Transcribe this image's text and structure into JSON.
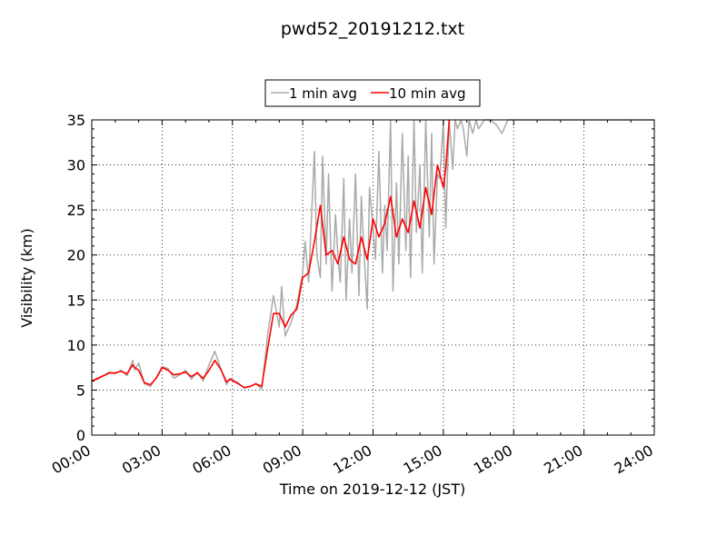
{
  "chart_data": {
    "type": "line",
    "title": "pwd52_20191212.txt",
    "xlabel": "Time on 2019-12-12 (JST)",
    "ylabel": "Visibility (km)",
    "xlim": [
      0,
      24
    ],
    "ylim": [
      0,
      35
    ],
    "x_tick_labels": [
      "00:00",
      "03:00",
      "06:00",
      "09:00",
      "12:00",
      "15:00",
      "18:00",
      "21:00",
      "24:00"
    ],
    "y_tick_labels": [
      "0",
      "5",
      "10",
      "15",
      "20",
      "25",
      "30",
      "35"
    ],
    "grid": true,
    "legend_position": "top-center",
    "series": [
      {
        "name": "1 min avg",
        "color": "#aaaaaa",
        "x": [
          0.0,
          0.25,
          0.5,
          0.75,
          1.0,
          1.25,
          1.5,
          1.75,
          1.83,
          2.0,
          2.25,
          2.5,
          2.75,
          3.0,
          3.25,
          3.5,
          3.75,
          4.0,
          4.25,
          4.5,
          4.75,
          5.0,
          5.25,
          5.5,
          5.75,
          5.9,
          6.25,
          6.5,
          6.75,
          7.0,
          7.25,
          7.5,
          7.75,
          8.0,
          8.1,
          8.25,
          8.5,
          8.75,
          9.0,
          9.1,
          9.25,
          9.5,
          9.6,
          9.75,
          9.85,
          10.0,
          10.1,
          10.25,
          10.4,
          10.5,
          10.6,
          10.75,
          10.85,
          11.0,
          11.1,
          11.25,
          11.4,
          11.5,
          11.6,
          11.75,
          11.85,
          12.0,
          12.1,
          12.25,
          12.4,
          12.5,
          12.6,
          12.75,
          12.85,
          13.0,
          13.1,
          13.25,
          13.4,
          13.5,
          13.6,
          13.75,
          13.85,
          14.0,
          14.1,
          14.25,
          14.4,
          14.5,
          14.6,
          14.75,
          14.85,
          15.0,
          15.1,
          15.25,
          15.4,
          15.5,
          15.6,
          15.75,
          15.85,
          16.0,
          16.1,
          16.25,
          16.4,
          16.5,
          16.75,
          17.0,
          17.25,
          17.5,
          17.75,
          18.0,
          18.5,
          19.0,
          19.5,
          20.0,
          20.5,
          21.0,
          21.5,
          22.0,
          22.5,
          23.0,
          23.5,
          24.0
        ],
        "values": [
          6.0,
          6.2,
          6.6,
          7.0,
          6.8,
          7.2,
          6.6,
          8.3,
          7.2,
          8.0,
          5.7,
          5.4,
          6.4,
          7.6,
          7.4,
          6.3,
          6.7,
          7.2,
          6.2,
          7.0,
          6.0,
          7.8,
          9.3,
          7.4,
          5.6,
          6.3,
          5.8,
          5.2,
          5.4,
          5.7,
          5.1,
          11.0,
          15.5,
          12.0,
          16.5,
          11.0,
          12.5,
          14.5,
          18.0,
          21.5,
          17.0,
          31.5,
          20.0,
          17.5,
          31.0,
          19.0,
          29.0,
          16.0,
          24.5,
          20.0,
          17.0,
          28.5,
          15.0,
          24.0,
          18.0,
          29.0,
          15.5,
          26.5,
          21.0,
          14.0,
          27.5,
          23.0,
          19.5,
          31.5,
          18.0,
          25.5,
          20.5,
          35.0,
          16.0,
          28.0,
          19.0,
          33.5,
          20.5,
          31.0,
          17.5,
          35.0,
          22.5,
          30.0,
          18.0,
          35.0,
          22.0,
          33.5,
          19.0,
          29.0,
          28.5,
          35.0,
          23.0,
          35.0,
          29.5,
          35.0,
          34.0,
          35.0,
          34.0,
          31.0,
          35.0,
          33.5,
          35.0,
          34.0,
          35.0,
          35.0,
          34.5,
          33.5,
          35.0,
          35.0,
          35.0,
          35.0,
          35.0,
          35.0,
          35.0,
          35.0,
          35.0,
          35.0,
          35.0,
          35.0,
          35.0,
          35.0
        ]
      },
      {
        "name": "10 min avg",
        "color": "#ff0000",
        "x": [
          0.0,
          0.25,
          0.5,
          0.75,
          1.0,
          1.25,
          1.5,
          1.75,
          1.83,
          2.0,
          2.25,
          2.5,
          2.75,
          3.0,
          3.25,
          3.5,
          3.75,
          4.0,
          4.25,
          4.5,
          4.75,
          5.0,
          5.25,
          5.5,
          5.75,
          5.9,
          6.25,
          6.5,
          6.75,
          7.0,
          7.25,
          7.5,
          7.75,
          8.0,
          8.25,
          8.5,
          8.75,
          9.0,
          9.25,
          9.5,
          9.75,
          10.0,
          10.25,
          10.5,
          10.75,
          11.0,
          11.25,
          11.5,
          11.75,
          12.0,
          12.25,
          12.5,
          12.75,
          13.0,
          13.25,
          13.5,
          13.75,
          14.0,
          14.25,
          14.5,
          14.75,
          15.0,
          15.1,
          15.25
        ],
        "values": [
          6.0,
          6.3,
          6.6,
          6.9,
          6.9,
          7.1,
          6.8,
          7.8,
          7.5,
          7.2,
          5.8,
          5.6,
          6.3,
          7.5,
          7.2,
          6.7,
          6.8,
          7.0,
          6.5,
          6.9,
          6.3,
          7.2,
          8.3,
          7.3,
          5.9,
          6.2,
          5.7,
          5.3,
          5.4,
          5.7,
          5.4,
          9.5,
          13.5,
          13.5,
          12.0,
          13.3,
          14.0,
          17.5,
          18.0,
          21.5,
          25.5,
          20.0,
          20.5,
          19.0,
          22.0,
          19.5,
          19.0,
          22.0,
          19.5,
          24.0,
          22.0,
          23.5,
          26.5,
          22.0,
          24.0,
          22.5,
          26.0,
          23.0,
          27.5,
          24.5,
          30.0,
          27.5,
          29.5,
          35.0
        ]
      }
    ]
  }
}
